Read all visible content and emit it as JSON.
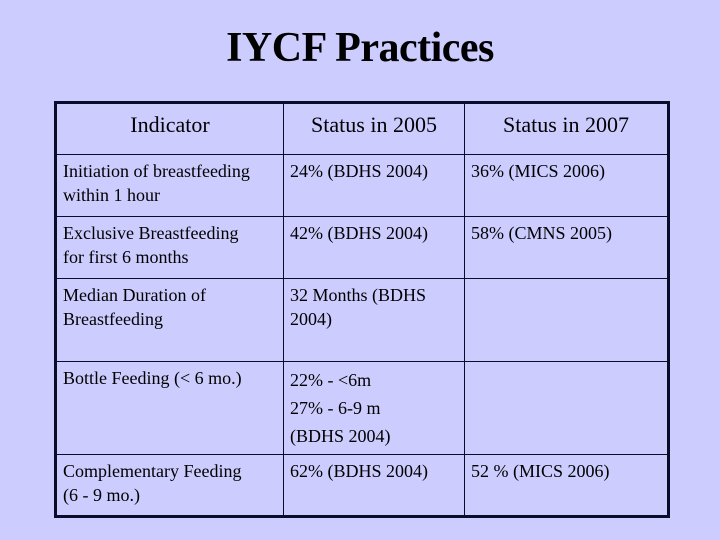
{
  "slide": {
    "title": "IYCF Practices",
    "background_color": "#ccccfe"
  },
  "table": {
    "headers": [
      "Indicator",
      "Status in 2005",
      "Status in 2007"
    ],
    "rows": [
      {
        "indicator": [
          "Initiation of breastfeeding",
          "within 1 hour"
        ],
        "status_2005": [
          "24% (BDHS 2004)"
        ],
        "status_2007": [
          "36% (MICS 2006)"
        ]
      },
      {
        "indicator": [
          "Exclusive Breastfeeding",
          "for first 6 months"
        ],
        "status_2005": [
          "42% (BDHS 2004)"
        ],
        "status_2007": [
          "58% (CMNS 2005)"
        ]
      },
      {
        "indicator": [
          "Median Duration of",
          "Breastfeeding"
        ],
        "status_2005": [
          "32 Months (BDHS",
          "2004)"
        ],
        "status_2007": []
      },
      {
        "indicator": [
          "Bottle Feeding (< 6 mo.)"
        ],
        "status_2005": [
          "22% - <6m",
          "27% - 6-9 m",
          "(BDHS 2004)"
        ],
        "status_2007": []
      },
      {
        "indicator": [
          "Complementary Feeding",
          "(6 - 9 mo.)"
        ],
        "status_2005": [
          "62% (BDHS 2004)"
        ],
        "status_2007": [
          "52 % (MICS 2006)"
        ]
      }
    ]
  }
}
